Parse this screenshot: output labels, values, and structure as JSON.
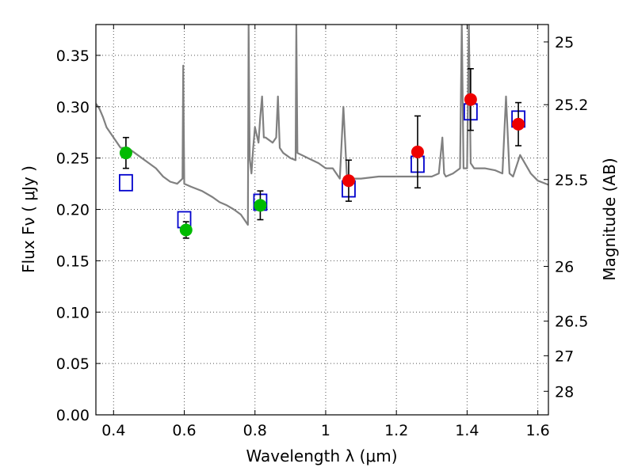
{
  "chart_data": {
    "type": "scatter",
    "title": "",
    "xlabel": "Wavelength  λ (μm)",
    "ylabel": "Flux  Fν  ( μJy )",
    "ylabel_right": "Magnitude (AB)",
    "xlim": [
      0.35,
      1.63
    ],
    "ylim": [
      0.0,
      0.38
    ],
    "grid": true,
    "x_ticks": [
      0.4,
      0.6,
      0.8,
      1.0,
      1.2,
      1.4,
      1.6
    ],
    "x_tick_labels": [
      "0.4",
      "0.6",
      "0.8",
      "1",
      "1.2",
      "1.4",
      "1.6"
    ],
    "y_ticks": [
      0.0,
      0.05,
      0.1,
      0.15,
      0.2,
      0.25,
      0.3,
      0.35
    ],
    "y_tick_labels": [
      "0.00",
      "0.05",
      "0.10",
      "0.15",
      "0.20",
      "0.25",
      "0.30",
      "0.35"
    ],
    "magnitude_ticks": [
      25,
      25.2,
      25.5,
      26,
      26.5,
      27,
      28
    ],
    "magnitude_tick_labels": [
      "25",
      "25.2",
      "25.5",
      "26",
      "26.5",
      "27",
      "28"
    ],
    "colors": {
      "spectrum": "#808080",
      "model": "#0000cc",
      "obs_optical": "#00bb00",
      "obs_nir": "#ee0000",
      "errorbar": "#000000",
      "grid": "#555555"
    },
    "series": [
      {
        "kind": "spectrum",
        "x": [
          0.35,
          0.36,
          0.37,
          0.38,
          0.4,
          0.42,
          0.44,
          0.46,
          0.48,
          0.5,
          0.52,
          0.54,
          0.56,
          0.58,
          0.595,
          0.597,
          0.6,
          0.62,
          0.65,
          0.68,
          0.7,
          0.72,
          0.74,
          0.76,
          0.77,
          0.78,
          0.782,
          0.785,
          0.79,
          0.795,
          0.8,
          0.81,
          0.815,
          0.82,
          0.825,
          0.83,
          0.85,
          0.86,
          0.865,
          0.87,
          0.88,
          0.9,
          0.915,
          0.917,
          0.92,
          0.95,
          0.98,
          1.0,
          1.02,
          1.04,
          1.05,
          1.06,
          1.08,
          1.1,
          1.15,
          1.2,
          1.25,
          1.3,
          1.32,
          1.33,
          1.335,
          1.34,
          1.36,
          1.38,
          1.385,
          1.39,
          1.4,
          1.405,
          1.41,
          1.42,
          1.45,
          1.48,
          1.5,
          1.51,
          1.52,
          1.53,
          1.55,
          1.58,
          1.6,
          1.63
        ],
        "y": [
          0.303,
          0.298,
          0.29,
          0.28,
          0.27,
          0.26,
          0.26,
          0.255,
          0.25,
          0.245,
          0.24,
          0.232,
          0.227,
          0.225,
          0.23,
          0.34,
          0.225,
          0.222,
          0.218,
          0.212,
          0.207,
          0.204,
          0.2,
          0.195,
          0.19,
          0.185,
          0.38,
          0.25,
          0.235,
          0.26,
          0.28,
          0.265,
          0.29,
          0.31,
          0.27,
          0.27,
          0.265,
          0.27,
          0.31,
          0.26,
          0.255,
          0.25,
          0.248,
          0.38,
          0.255,
          0.25,
          0.245,
          0.24,
          0.24,
          0.23,
          0.3,
          0.232,
          0.23,
          0.23,
          0.232,
          0.232,
          0.232,
          0.232,
          0.235,
          0.27,
          0.235,
          0.232,
          0.235,
          0.24,
          0.38,
          0.24,
          0.24,
          0.38,
          0.245,
          0.24,
          0.24,
          0.238,
          0.235,
          0.31,
          0.235,
          0.232,
          0.253,
          0.235,
          0.228,
          0.224
        ]
      },
      {
        "kind": "model-photometry",
        "x": [
          0.435,
          0.6,
          0.815,
          1.065,
          1.26,
          1.41,
          1.545
        ],
        "y": [
          0.226,
          0.19,
          0.207,
          0.22,
          0.244,
          0.295,
          0.288
        ]
      },
      {
        "kind": "observed-optical",
        "x": [
          0.435,
          0.605,
          0.815
        ],
        "y": [
          0.255,
          0.18,
          0.204
        ],
        "err": [
          0.015,
          0.008,
          0.014
        ]
      },
      {
        "kind": "observed-nir",
        "x": [
          1.065,
          1.26,
          1.41,
          1.545
        ],
        "y": [
          0.228,
          0.256,
          0.307,
          0.283
        ],
        "err": [
          0.02,
          0.035,
          0.03,
          0.021
        ]
      }
    ]
  }
}
